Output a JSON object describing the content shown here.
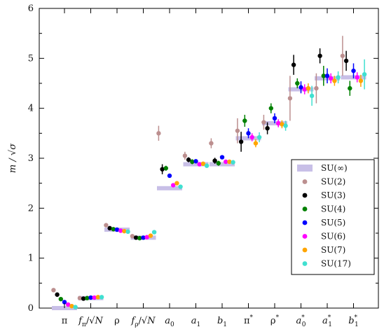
{
  "chart_data": {
    "type": "scatter",
    "ylabel": "m / √σ",
    "ylim": [
      0,
      6
    ],
    "yticks": [
      "0",
      "1",
      "2",
      "3",
      "4",
      "5",
      "6"
    ],
    "categories": [
      "π",
      "f_π/√N",
      "ρ",
      "f_ρ/√N",
      "a_0",
      "a_1",
      "b_1",
      "π*",
      "ρ*",
      "a_0*",
      "a_1*",
      "b_1*"
    ],
    "category_display": [
      {
        "base": "π",
        "sub": "",
        "sup": "",
        "sqrtN": false
      },
      {
        "base": "f",
        "sub": "π",
        "sup": "",
        "sqrtN": true
      },
      {
        "base": "ρ",
        "sub": "",
        "sup": "",
        "sqrtN": false
      },
      {
        "base": "f",
        "sub": "ρ",
        "sup": "",
        "sqrtN": true
      },
      {
        "base": "a",
        "sub": "0",
        "sup": "",
        "sqrtN": false
      },
      {
        "base": "a",
        "sub": "1",
        "sup": "",
        "sqrtN": false
      },
      {
        "base": "b",
        "sub": "1",
        "sup": "",
        "sqrtN": false
      },
      {
        "base": "π",
        "sub": "",
        "sup": "*",
        "sqrtN": false
      },
      {
        "base": "ρ",
        "sub": "",
        "sup": "*",
        "sqrtN": false
      },
      {
        "base": "a",
        "sub": "0",
        "sup": "*",
        "sqrtN": false
      },
      {
        "base": "a",
        "sub": "1",
        "sup": "*",
        "sqrtN": false
      },
      {
        "base": "b",
        "sub": "1",
        "sup": "*",
        "sqrtN": false
      }
    ],
    "band": {
      "name": "SU(∞)",
      "color": "#c8bfe7",
      "values": [
        0.0,
        0.2,
        1.57,
        1.41,
        2.4,
        2.88,
        2.88,
        3.4,
        3.7,
        4.38,
        4.6,
        4.62
      ]
    },
    "series": [
      {
        "name": "SU(2)",
        "color": "#bc8f8f",
        "values": [
          0.36,
          0.2,
          1.66,
          1.44,
          3.5,
          3.05,
          3.3,
          3.55,
          3.72,
          4.2,
          4.4,
          5.05
        ],
        "errors": [
          0.02,
          0.02,
          0.03,
          0.03,
          0.15,
          0.08,
          0.1,
          0.25,
          0.15,
          0.45,
          0.3,
          0.4
        ]
      },
      {
        "name": "SU(3)",
        "color": "#000000",
        "values": [
          0.27,
          0.19,
          1.6,
          1.41,
          2.78,
          2.97,
          2.95,
          3.33,
          3.6,
          4.87,
          5.05,
          4.95
        ],
        "errors": [
          0.02,
          0.02,
          0.02,
          0.02,
          0.1,
          0.05,
          0.06,
          0.2,
          0.12,
          0.2,
          0.15,
          0.2
        ]
      },
      {
        "name": "SU(4)",
        "color": "#008000",
        "values": [
          0.18,
          0.2,
          1.58,
          1.4,
          2.8,
          2.93,
          2.9,
          3.75,
          4.0,
          4.5,
          4.65,
          4.4
        ],
        "errors": [
          0.02,
          0.02,
          0.02,
          0.02,
          0.05,
          0.05,
          0.05,
          0.12,
          0.1,
          0.1,
          0.2,
          0.15
        ]
      },
      {
        "name": "SU(5)",
        "color": "#0000ff",
        "values": [
          0.12,
          0.21,
          1.57,
          1.41,
          2.65,
          2.94,
          3.02,
          3.5,
          3.8,
          4.42,
          4.65,
          4.75
        ],
        "errors": [
          0.02,
          0.02,
          0.02,
          0.02,
          0.04,
          0.04,
          0.04,
          0.1,
          0.1,
          0.12,
          0.15,
          0.15
        ]
      },
      {
        "name": "SU(6)",
        "color": "#ff00ff",
        "values": [
          0.07,
          0.21,
          1.55,
          1.42,
          2.46,
          2.88,
          2.93,
          3.42,
          3.7,
          4.38,
          4.6,
          4.62
        ],
        "errors": [
          0.02,
          0.02,
          0.02,
          0.02,
          0.04,
          0.04,
          0.04,
          0.08,
          0.08,
          0.1,
          0.1,
          0.1
        ]
      },
      {
        "name": "SU(7)",
        "color": "#ffa500",
        "values": [
          0.04,
          0.22,
          1.54,
          1.45,
          2.5,
          2.89,
          2.93,
          3.3,
          3.68,
          4.4,
          4.55,
          4.55
        ],
        "errors": [
          0.02,
          0.02,
          0.02,
          0.02,
          0.04,
          0.04,
          0.04,
          0.08,
          0.08,
          0.1,
          0.1,
          0.12
        ]
      },
      {
        "name": "SU(17)",
        "color": "#40e0d0",
        "values": [
          0.02,
          0.22,
          1.53,
          1.52,
          2.43,
          2.85,
          2.92,
          3.42,
          3.65,
          4.25,
          4.62,
          4.68
        ],
        "errors": [
          0.02,
          0.02,
          0.02,
          0.03,
          0.04,
          0.04,
          0.04,
          0.1,
          0.1,
          0.2,
          0.12,
          0.3
        ]
      }
    ],
    "legend": "right",
    "grid": false
  }
}
